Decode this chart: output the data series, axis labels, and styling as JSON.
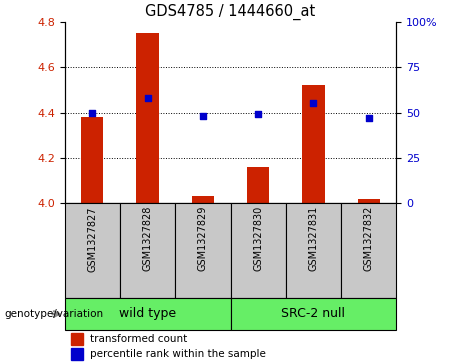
{
  "title": "GDS4785 / 1444660_at",
  "samples": [
    "GSM1327827",
    "GSM1327828",
    "GSM1327829",
    "GSM1327830",
    "GSM1327831",
    "GSM1327832"
  ],
  "red_values": [
    4.38,
    4.75,
    4.03,
    4.16,
    4.52,
    4.02
  ],
  "blue_values": [
    50,
    58,
    48,
    49,
    55,
    47
  ],
  "ylim_left": [
    4.0,
    4.8
  ],
  "ylim_right": [
    0,
    100
  ],
  "yticks_left": [
    4.0,
    4.2,
    4.4,
    4.6,
    4.8
  ],
  "yticks_right": [
    0,
    25,
    50,
    75,
    100
  ],
  "bar_color": "#CC2200",
  "dot_color": "#0000CC",
  "plot_bg_color": "#ffffff",
  "bar_width": 0.4,
  "genotype_label": "genotype/variation",
  "group_labels": [
    "wild type",
    "SRC-2 null"
  ],
  "group_color": "#66EE66",
  "sample_box_color": "#C8C8C8",
  "legend_items": [
    {
      "color": "#CC2200",
      "label": "transformed count"
    },
    {
      "color": "#0000CC",
      "label": "percentile rank within the sample"
    }
  ],
  "grid_yticks": [
    4.2,
    4.4,
    4.6
  ]
}
